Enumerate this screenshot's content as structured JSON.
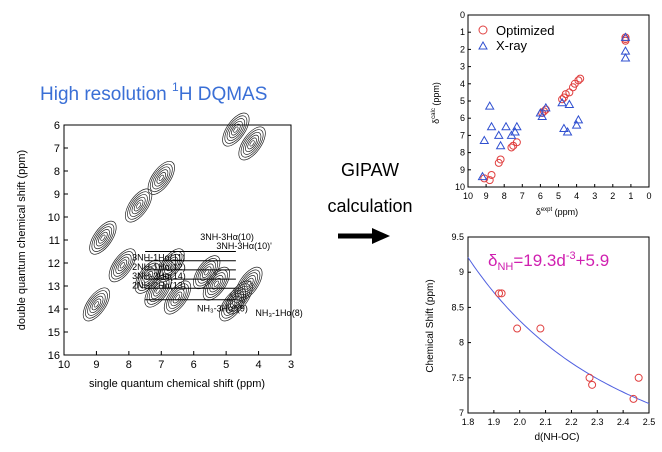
{
  "headline": {
    "main": "High resolution ",
    "sup": "1",
    "rest": "H DQMAS"
  },
  "arrow_label": {
    "line1": "GIPAW",
    "line2": "calculation"
  },
  "colors": {
    "headline": "#3a6fd6",
    "optimized": "#e04040",
    "xray": "#3050d0",
    "fit_line": "#5060e0",
    "equation": "#d020b0"
  },
  "chart_data": [
    {
      "type": "contour",
      "xlabel": "single quantum chemical shift (ppm)",
      "ylabel": "double quantum chemical shift (ppm)",
      "xlim": [
        10,
        3
      ],
      "ylim": [
        16,
        6
      ],
      "xticks": [
        10,
        9,
        8,
        7,
        6,
        5,
        4,
        3
      ],
      "yticks": [
        6,
        7,
        8,
        9,
        10,
        11,
        12,
        13,
        14,
        15,
        16
      ],
      "peaks": [
        {
          "x": 8.2,
          "y": 12.1
        },
        {
          "x": 7.4,
          "y": 12.6
        },
        {
          "x": 7.1,
          "y": 13.2
        },
        {
          "x": 6.7,
          "y": 12.1
        },
        {
          "x": 6.5,
          "y": 13.5
        },
        {
          "x": 5.6,
          "y": 12.4
        },
        {
          "x": 5.3,
          "y": 12.9
        },
        {
          "x": 4.6,
          "y": 13.5
        },
        {
          "x": 4.3,
          "y": 12.9
        },
        {
          "x": 4.8,
          "y": 13.8
        },
        {
          "x": 7.7,
          "y": 9.5
        },
        {
          "x": 7.0,
          "y": 8.3
        },
        {
          "x": 4.7,
          "y": 6.2
        },
        {
          "x": 4.2,
          "y": 6.8
        },
        {
          "x": 8.8,
          "y": 10.9
        },
        {
          "x": 9.0,
          "y": 13.8
        }
      ],
      "assignments": [
        {
          "text": "3NH-3Hα(10)",
          "x": 5.8,
          "y": 11.0
        },
        {
          "text": "3NH-3Hα(10)'",
          "x": 5.3,
          "y": 11.4
        },
        {
          "text": "3NH-1Hα(11)",
          "x": 7.9,
          "y": 11.9
        },
        {
          "text": "2NH-1Hα(12)",
          "x": 7.9,
          "y": 12.3
        },
        {
          "text": "3NH-2Hα(14)",
          "x": 7.9,
          "y": 12.7
        },
        {
          "text": "2NH-2Hα(13)",
          "x": 7.9,
          "y": 13.1
        },
        {
          "text": "NH₃-3Hα*(9)",
          "x": 5.9,
          "y": 14.1
        },
        {
          "text": "NH₃-1Hα(8)",
          "x": 4.1,
          "y": 14.3
        }
      ]
    },
    {
      "type": "scatter",
      "xlabel": "δ",
      "xlabel_sup": "expt",
      "xlabel_unit": " (ppm)",
      "ylabel": "δ",
      "ylabel_sup": "calc",
      "ylabel_unit": " (ppm)",
      "xlim": [
        10,
        0
      ],
      "ylim": [
        10,
        0
      ],
      "xticks": [
        10,
        9,
        8,
        7,
        6,
        5,
        4,
        3,
        2,
        1,
        0
      ],
      "yticks": [
        0,
        1,
        2,
        3,
        4,
        5,
        6,
        7,
        8,
        9,
        10
      ],
      "series": [
        {
          "name": "Optimized",
          "marker": "circle",
          "x": [
            9.1,
            8.8,
            8.7,
            8.3,
            8.2,
            7.6,
            7.5,
            7.3,
            5.9,
            5.8,
            5.7,
            4.8,
            4.7,
            4.6,
            4.4,
            4.2,
            4.1,
            3.9,
            3.8,
            1.3,
            1.3,
            1.3
          ],
          "y": [
            9.5,
            9.6,
            9.3,
            8.6,
            8.4,
            7.7,
            7.6,
            7.4,
            5.7,
            5.6,
            5.5,
            4.9,
            4.8,
            4.6,
            4.5,
            4.2,
            4.0,
            3.8,
            3.7,
            1.5,
            1.4,
            1.3
          ]
        },
        {
          "name": "X-ray",
          "marker": "triangle",
          "x": [
            9.2,
            9.1,
            8.8,
            8.7,
            8.3,
            8.2,
            7.9,
            7.6,
            7.4,
            7.3,
            6.0,
            5.9,
            5.7,
            4.8,
            4.7,
            4.5,
            4.4,
            4.0,
            3.9,
            1.3,
            1.3,
            1.3
          ],
          "y": [
            9.4,
            7.3,
            5.3,
            6.5,
            7.0,
            7.6,
            6.5,
            7.0,
            6.8,
            6.5,
            5.7,
            5.9,
            5.4,
            5.1,
            6.6,
            6.8,
            5.2,
            6.4,
            6.1,
            2.1,
            2.5,
            1.3
          ]
        }
      ]
    },
    {
      "type": "scatter",
      "xlabel": "d(NH-OC)",
      "ylabel": "Chemical Shift (ppm)",
      "xlim": [
        1.8,
        2.5
      ],
      "ylim": [
        7,
        9.5
      ],
      "xticks": [
        1.8,
        1.9,
        2.0,
        2.1,
        2.2,
        2.3,
        2.4,
        2.5
      ],
      "ytick_labels": [
        "7",
        "7.5",
        "8",
        "8.5",
        "9",
        "9.5"
      ],
      "yticks": [
        7,
        7.5,
        8,
        8.5,
        9,
        9.5
      ],
      "equation": {
        "prefix": "δ",
        "sub": "NH",
        "mid": "=19.3d",
        "sup": "-3",
        "suffix": "+5.9"
      },
      "fit": {
        "a": 19.3,
        "power": -3,
        "b": 5.9
      },
      "points": {
        "x": [
          1.92,
          1.93,
          1.99,
          2.08,
          2.27,
          2.28,
          2.44,
          2.46
        ],
        "y": [
          8.7,
          8.7,
          8.2,
          8.2,
          7.5,
          7.4,
          7.2,
          7.5
        ]
      }
    }
  ]
}
